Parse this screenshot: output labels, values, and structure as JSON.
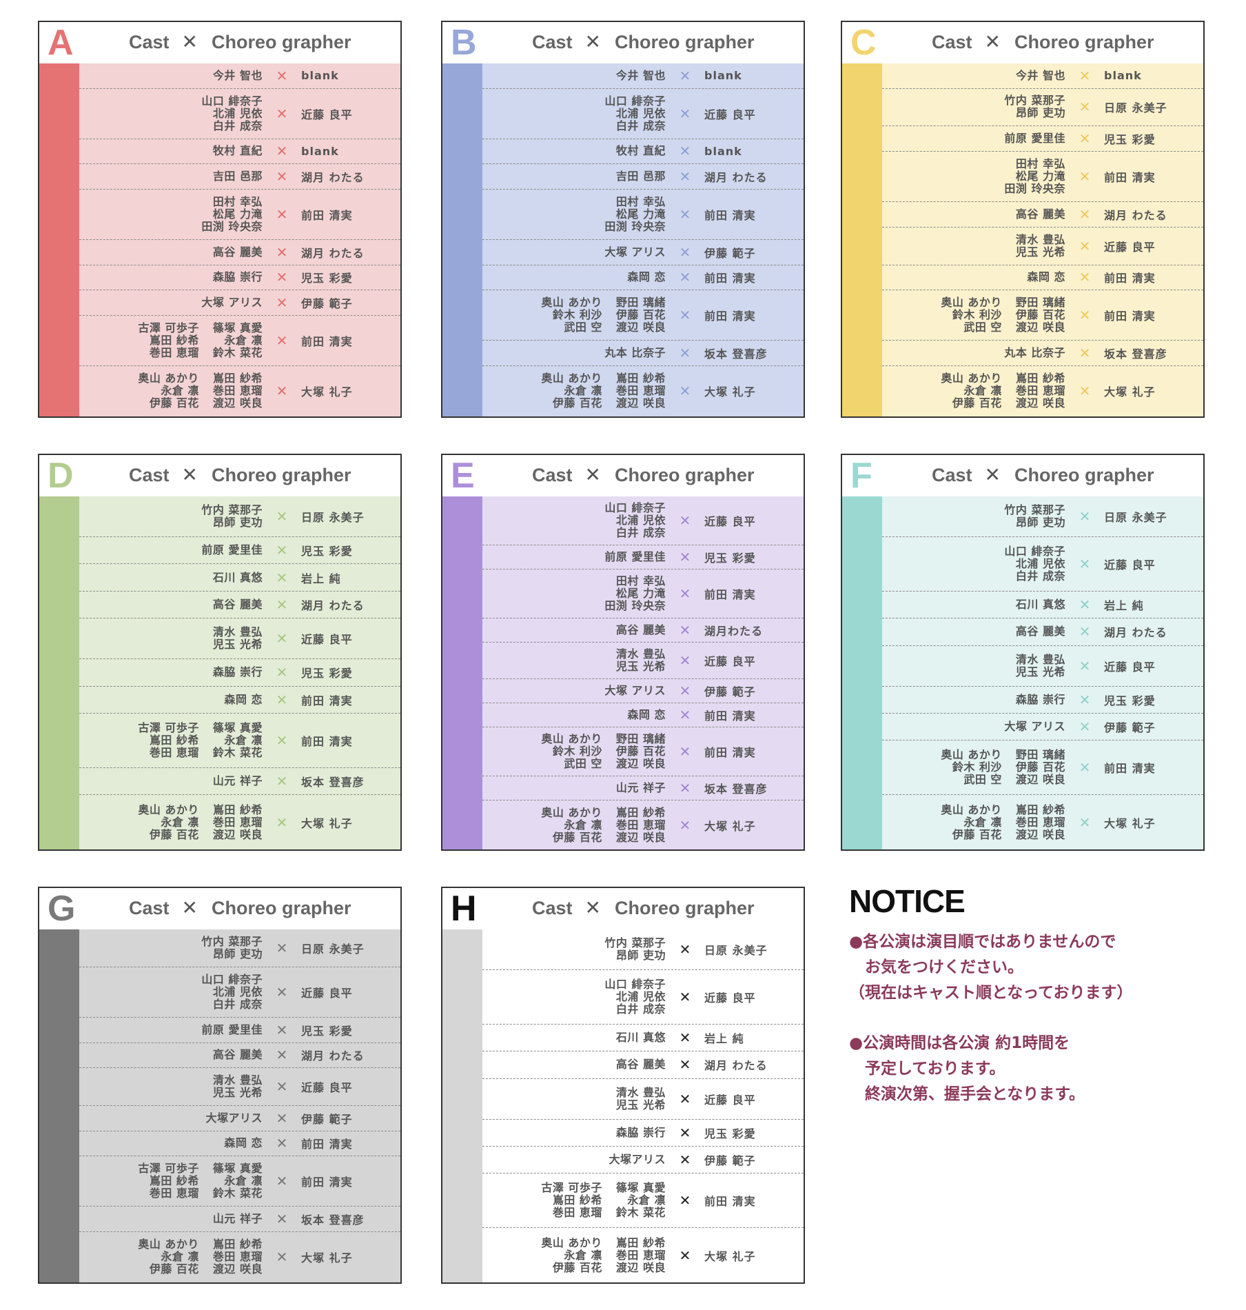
{
  "header": {
    "cast_label": "Cast",
    "x_label": "✕",
    "choreo_label": "Choreo grapher"
  },
  "panels": [
    {
      "letter": "A",
      "color": "#e57373",
      "bg": "#f4d3d4",
      "x_color": "#e07070",
      "rows": [
        {
          "cast": [
            [
              "今井 智也"
            ]
          ],
          "choreo": "blank"
        },
        {
          "cast": [
            [
              "山口 緋奈子",
              "北浦 児依",
              "白井 成奈"
            ]
          ],
          "choreo": "近藤 良平"
        },
        {
          "cast": [
            [
              "牧村 直紀"
            ]
          ],
          "choreo": "blank"
        },
        {
          "cast": [
            [
              "吉田 邑那"
            ]
          ],
          "choreo": "湖月 わたる"
        },
        {
          "cast": [
            [
              "田村 幸弘",
              "松尾 力滝",
              "田渕 玲央奈"
            ]
          ],
          "choreo": "前田 清実"
        },
        {
          "cast": [
            [
              "高谷 麗美"
            ]
          ],
          "choreo": "湖月 わたる"
        },
        {
          "cast": [
            [
              "森脇 崇行"
            ]
          ],
          "choreo": "児玉 彩愛"
        },
        {
          "cast": [
            [
              "大塚 アリス"
            ]
          ],
          "choreo": "伊藤 範子"
        },
        {
          "cast": [
            [
              "古澤 可歩子",
              "嶌田 紗希",
              "巻田 恵瑠"
            ],
            [
              "篠塚 真愛",
              "永倉 凛",
              "鈴木 菜花"
            ]
          ],
          "choreo": "前田 清実"
        },
        {
          "cast": [
            [
              "奥山 あかり",
              "永倉 凛",
              "伊藤 百花"
            ],
            [
              "嶌田 紗希",
              "巻田 恵瑠",
              "渡辺 咲良"
            ]
          ],
          "choreo": "大塚 礼子"
        }
      ]
    },
    {
      "letter": "B",
      "color": "#97a7d8",
      "bg": "#d0d8ef",
      "x_color": "#8d9fd5",
      "rows": [
        {
          "cast": [
            [
              "今井 智也"
            ]
          ],
          "choreo": "blank"
        },
        {
          "cast": [
            [
              "山口 緋奈子",
              "北浦 児依",
              "白井 成奈"
            ]
          ],
          "choreo": "近藤 良平"
        },
        {
          "cast": [
            [
              "牧村 直紀"
            ]
          ],
          "choreo": "blank"
        },
        {
          "cast": [
            [
              "吉田 邑那"
            ]
          ],
          "choreo": "湖月 わたる"
        },
        {
          "cast": [
            [
              "田村 幸弘",
              "松尾 力滝",
              "田渕 玲央奈"
            ]
          ],
          "choreo": "前田 清実"
        },
        {
          "cast": [
            [
              "大塚 アリス"
            ]
          ],
          "choreo": "伊藤 範子"
        },
        {
          "cast": [
            [
              "森岡 恋"
            ]
          ],
          "choreo": "前田 清実"
        },
        {
          "cast": [
            [
              "奥山 あかり",
              "鈴木 利沙",
              "武田 空"
            ],
            [
              "野田 璃緒",
              "伊藤 百花",
              "渡辺 咲良"
            ]
          ],
          "choreo": "前田 清実"
        },
        {
          "cast": [
            [
              "丸本 比奈子"
            ]
          ],
          "choreo": "坂本 登喜彦"
        },
        {
          "cast": [
            [
              "奥山 あかり",
              "永倉 凛",
              "伊藤 百花"
            ],
            [
              "嶌田 紗希",
              "巻田 恵瑠",
              "渡辺 咲良"
            ]
          ],
          "choreo": "大塚 礼子"
        }
      ]
    },
    {
      "letter": "C",
      "color": "#f2d46e",
      "bg": "#fbf1cc",
      "x_color": "#efc95a",
      "rows": [
        {
          "cast": [
            [
              "今井 智也"
            ]
          ],
          "choreo": "blank"
        },
        {
          "cast": [
            [
              "竹内 菜那子",
              "昂師 吏功"
            ]
          ],
          "choreo": "日原 永美子"
        },
        {
          "cast": [
            [
              "前原 愛里佳"
            ]
          ],
          "choreo": "児玉 彩愛"
        },
        {
          "cast": [
            [
              "田村 幸弘",
              "松尾 力滝",
              "田渕 玲央奈"
            ]
          ],
          "choreo": "前田 清実"
        },
        {
          "cast": [
            [
              "高谷 麗美"
            ]
          ],
          "choreo": "湖月 わたる"
        },
        {
          "cast": [
            [
              "清水 豊弘",
              "児玉 光希"
            ]
          ],
          "choreo": "近藤 良平"
        },
        {
          "cast": [
            [
              "森岡 恋"
            ]
          ],
          "choreo": "前田 清実"
        },
        {
          "cast": [
            [
              "奥山 あかり",
              "鈴木 利沙",
              "武田 空"
            ],
            [
              "野田 璃緒",
              "伊藤 百花",
              "渡辺 咲良"
            ]
          ],
          "choreo": "前田 清実"
        },
        {
          "cast": [
            [
              "丸本 比奈子"
            ]
          ],
          "choreo": "坂本 登喜彦"
        },
        {
          "cast": [
            [
              "奥山 あかり",
              "永倉 凛",
              "伊藤 百花"
            ],
            [
              "嶌田 紗希",
              "巻田 恵瑠",
              "渡辺 咲良"
            ]
          ],
          "choreo": "大塚 礼子"
        }
      ]
    },
    {
      "letter": "D",
      "color": "#b3cc8f",
      "bg": "#e3ecd6",
      "x_color": "#a9c684",
      "rows": [
        {
          "cast": [
            [
              "竹内 菜那子",
              "昂師 吏功"
            ]
          ],
          "choreo": "日原 永美子"
        },
        {
          "cast": [
            [
              "前原 愛里佳"
            ]
          ],
          "choreo": "児玉 彩愛"
        },
        {
          "cast": [
            [
              "石川 真悠"
            ]
          ],
          "choreo": "岩上 純"
        },
        {
          "cast": [
            [
              "高谷 麗美"
            ]
          ],
          "choreo": "湖月 わたる"
        },
        {
          "cast": [
            [
              "清水 豊弘",
              "児玉 光希"
            ]
          ],
          "choreo": "近藤 良平"
        },
        {
          "cast": [
            [
              "森脇 崇行"
            ]
          ],
          "choreo": "児玉 彩愛"
        },
        {
          "cast": [
            [
              "森岡 恋"
            ]
          ],
          "choreo": "前田 清実"
        },
        {
          "cast": [
            [
              "古澤 可歩子",
              "嶌田 紗希",
              "巻田 恵瑠"
            ],
            [
              "篠塚 真愛",
              "永倉 凛",
              "鈴木 菜花"
            ]
          ],
          "choreo": "前田 清実"
        },
        {
          "cast": [
            [
              "山元 祥子"
            ]
          ],
          "choreo": "坂本 登喜彦"
        },
        {
          "cast": [
            [
              "奥山 あかり",
              "永倉 凛",
              "伊藤 百花"
            ],
            [
              "嶌田 紗希",
              "巻田 恵瑠",
              "渡辺 咲良"
            ]
          ],
          "choreo": "大塚 礼子"
        }
      ]
    },
    {
      "letter": "E",
      "color": "#ad8fd9",
      "bg": "#e4dbf2",
      "x_color": "#a284d6",
      "rows": [
        {
          "cast": [
            [
              "山口 緋奈子",
              "北浦 児依",
              "白井 成奈"
            ]
          ],
          "choreo": "近藤 良平"
        },
        {
          "cast": [
            [
              "前原 愛里佳"
            ]
          ],
          "choreo": "児玉 彩愛"
        },
        {
          "cast": [
            [
              "田村 幸弘",
              "松尾 力滝",
              "田渕 玲央奈"
            ]
          ],
          "choreo": "前田 清実"
        },
        {
          "cast": [
            [
              "高谷 麗美"
            ]
          ],
          "choreo": "湖月わたる"
        },
        {
          "cast": [
            [
              "清水 豊弘",
              "児玉 光希"
            ]
          ],
          "choreo": "近藤 良平"
        },
        {
          "cast": [
            [
              "大塚 アリス"
            ]
          ],
          "choreo": "伊藤 範子"
        },
        {
          "cast": [
            [
              "森岡 恋"
            ]
          ],
          "choreo": "前田 清実"
        },
        {
          "cast": [
            [
              "奥山 あかり",
              "鈴木 利沙",
              "武田 空"
            ],
            [
              "野田 璃緒",
              "伊藤 百花",
              "渡辺 咲良"
            ]
          ],
          "choreo": "前田 清実"
        },
        {
          "cast": [
            [
              "山元 祥子"
            ]
          ],
          "choreo": "坂本 登喜彦"
        },
        {
          "cast": [
            [
              "奥山 あかり",
              "永倉 凛",
              "伊藤 百花"
            ],
            [
              "嶌田 紗希",
              "巻田 恵瑠",
              "渡辺 咲良"
            ]
          ],
          "choreo": "大塚 礼子"
        }
      ]
    },
    {
      "letter": "F",
      "color": "#9bd8d2",
      "bg": "#e2f3f1",
      "x_color": "#8fd1ca",
      "rows": [
        {
          "cast": [
            [
              "竹内 菜那子",
              "昂師 吏功"
            ]
          ],
          "choreo": "日原 永美子"
        },
        {
          "cast": [
            [
              "山口 緋奈子",
              "北浦 児依",
              "白井 成奈"
            ]
          ],
          "choreo": "近藤 良平"
        },
        {
          "cast": [
            [
              "石川 真悠"
            ]
          ],
          "choreo": "岩上 純"
        },
        {
          "cast": [
            [
              "高谷 麗美"
            ]
          ],
          "choreo": "湖月 わたる"
        },
        {
          "cast": [
            [
              "清水 豊弘",
              "児玉 光希"
            ]
          ],
          "choreo": "近藤 良平"
        },
        {
          "cast": [
            [
              "森脇 崇行"
            ]
          ],
          "choreo": "児玉 彩愛"
        },
        {
          "cast": [
            [
              "大塚 アリス"
            ]
          ],
          "choreo": "伊藤 範子"
        },
        {
          "cast": [
            [
              "奥山 あかり",
              "鈴木 利沙",
              "武田 空"
            ],
            [
              "野田 璃緒",
              "伊藤 百花",
              "渡辺 咲良"
            ]
          ],
          "choreo": "前田 清実"
        },
        {
          "cast": [
            [
              "奥山 あかり",
              "永倉 凛",
              "伊藤 百花"
            ],
            [
              "嶌田 紗希",
              "巻田 恵瑠",
              "渡辺 咲良"
            ]
          ],
          "choreo": "大塚 礼子"
        }
      ]
    },
    {
      "letter": "G",
      "color": "#7a7a7a",
      "bg": "#d5d5d5",
      "x_color": "#777777",
      "rows": [
        {
          "cast": [
            [
              "竹内 菜那子",
              "昂師 吏功"
            ]
          ],
          "choreo": "日原 永美子"
        },
        {
          "cast": [
            [
              "山口 緋奈子",
              "北浦 児依",
              "白井 成奈"
            ]
          ],
          "choreo": "近藤 良平"
        },
        {
          "cast": [
            [
              "前原 愛里佳"
            ]
          ],
          "choreo": "児玉 彩愛"
        },
        {
          "cast": [
            [
              "高谷 麗美"
            ]
          ],
          "choreo": "湖月 わたる"
        },
        {
          "cast": [
            [
              "清水 豊弘",
              "児玉 光希"
            ]
          ],
          "choreo": "近藤 良平"
        },
        {
          "cast": [
            [
              "大塚アリス"
            ]
          ],
          "choreo": "伊藤 範子"
        },
        {
          "cast": [
            [
              "森岡 恋"
            ]
          ],
          "choreo": "前田 清実"
        },
        {
          "cast": [
            [
              "古澤 可歩子",
              "嶌田 紗希",
              "巻田 恵瑠"
            ],
            [
              "篠塚 真愛",
              "永倉 凛",
              "鈴木 菜花"
            ]
          ],
          "choreo": "前田 清実"
        },
        {
          "cast": [
            [
              "山元 祥子"
            ]
          ],
          "choreo": "坂本 登喜彦"
        },
        {
          "cast": [
            [
              "奥山 あかり",
              "永倉 凛",
              "伊藤 百花"
            ],
            [
              "嶌田 紗希",
              "巻田 恵瑠",
              "渡辺 咲良"
            ]
          ],
          "choreo": "大塚 礼子"
        }
      ]
    },
    {
      "letter": "H",
      "color": "#d6d6d6",
      "bg": "#ffffff",
      "x_color": "#222222",
      "letter_color": "#111111",
      "rows": [
        {
          "cast": [
            [
              "竹内 菜那子",
              "昂師 吏功"
            ]
          ],
          "choreo": "日原 永美子"
        },
        {
          "cast": [
            [
              "山口 緋奈子",
              "北浦 児依",
              "白井 成奈"
            ]
          ],
          "choreo": "近藤 良平"
        },
        {
          "cast": [
            [
              "石川 真悠"
            ]
          ],
          "choreo": "岩上 純"
        },
        {
          "cast": [
            [
              "高谷 麗美"
            ]
          ],
          "choreo": "湖月 わたる"
        },
        {
          "cast": [
            [
              "清水 豊弘",
              "児玉 光希"
            ]
          ],
          "choreo": "近藤 良平"
        },
        {
          "cast": [
            [
              "森脇 崇行"
            ]
          ],
          "choreo": "児玉 彩愛"
        },
        {
          "cast": [
            [
              "大塚アリス"
            ]
          ],
          "choreo": "伊藤 範子"
        },
        {
          "cast": [
            [
              "古澤 可歩子",
              "嶌田 紗希",
              "巻田 恵瑠"
            ],
            [
              "篠塚 真愛",
              "永倉 凛",
              "鈴木 菜花"
            ]
          ],
          "choreo": "前田 清実"
        },
        {
          "cast": [
            [
              "奥山 あかり",
              "永倉 凛",
              "伊藤 百花"
            ],
            [
              "嶌田 紗希",
              "巻田 恵瑠",
              "渡辺 咲良"
            ]
          ],
          "choreo": "大塚 礼子"
        }
      ]
    }
  ],
  "notice": {
    "title": "NOTICE",
    "items": [
      [
        "●各公演は演目順ではありませんので",
        "　お気をつけください。",
        "（現在はキャスト順となっております）"
      ],
      [
        "●公演時間は各公演 約1時間を",
        "　予定しております。",
        "　終演次第、握手会となります。"
      ]
    ]
  }
}
